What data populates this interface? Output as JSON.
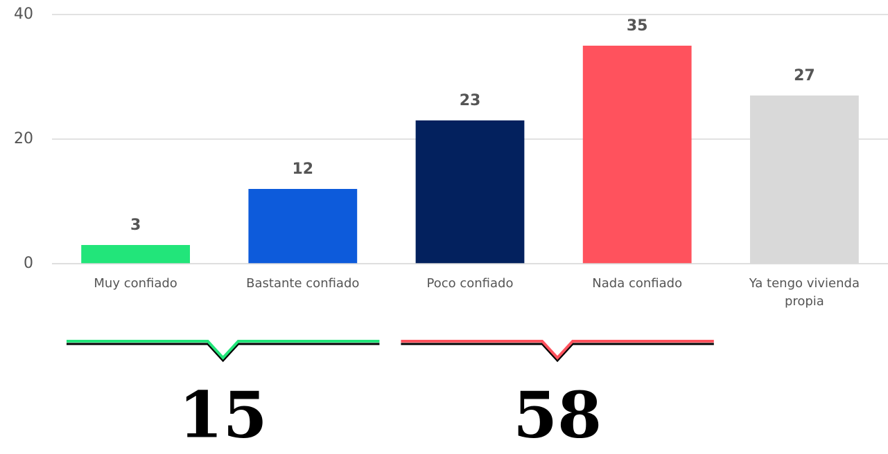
{
  "chart_data": {
    "type": "bar",
    "categories": [
      "Muy confiado",
      "Bastante confiado",
      "Poco confiado",
      "Nada confiado",
      "Ya tengo vivienda propia"
    ],
    "values": [
      3,
      12,
      23,
      35,
      27
    ],
    "colors": [
      "#22e57a",
      "#0d5bdb",
      "#03215e",
      "#ff525d",
      "#d9d9d9"
    ],
    "ylim": [
      0,
      40
    ],
    "yticks": [
      0,
      20,
      40
    ],
    "grid": true,
    "annotations": [
      {
        "text": "15",
        "color": "#22e57a"
      },
      {
        "text": "58",
        "color": "#ff525d"
      }
    ]
  }
}
